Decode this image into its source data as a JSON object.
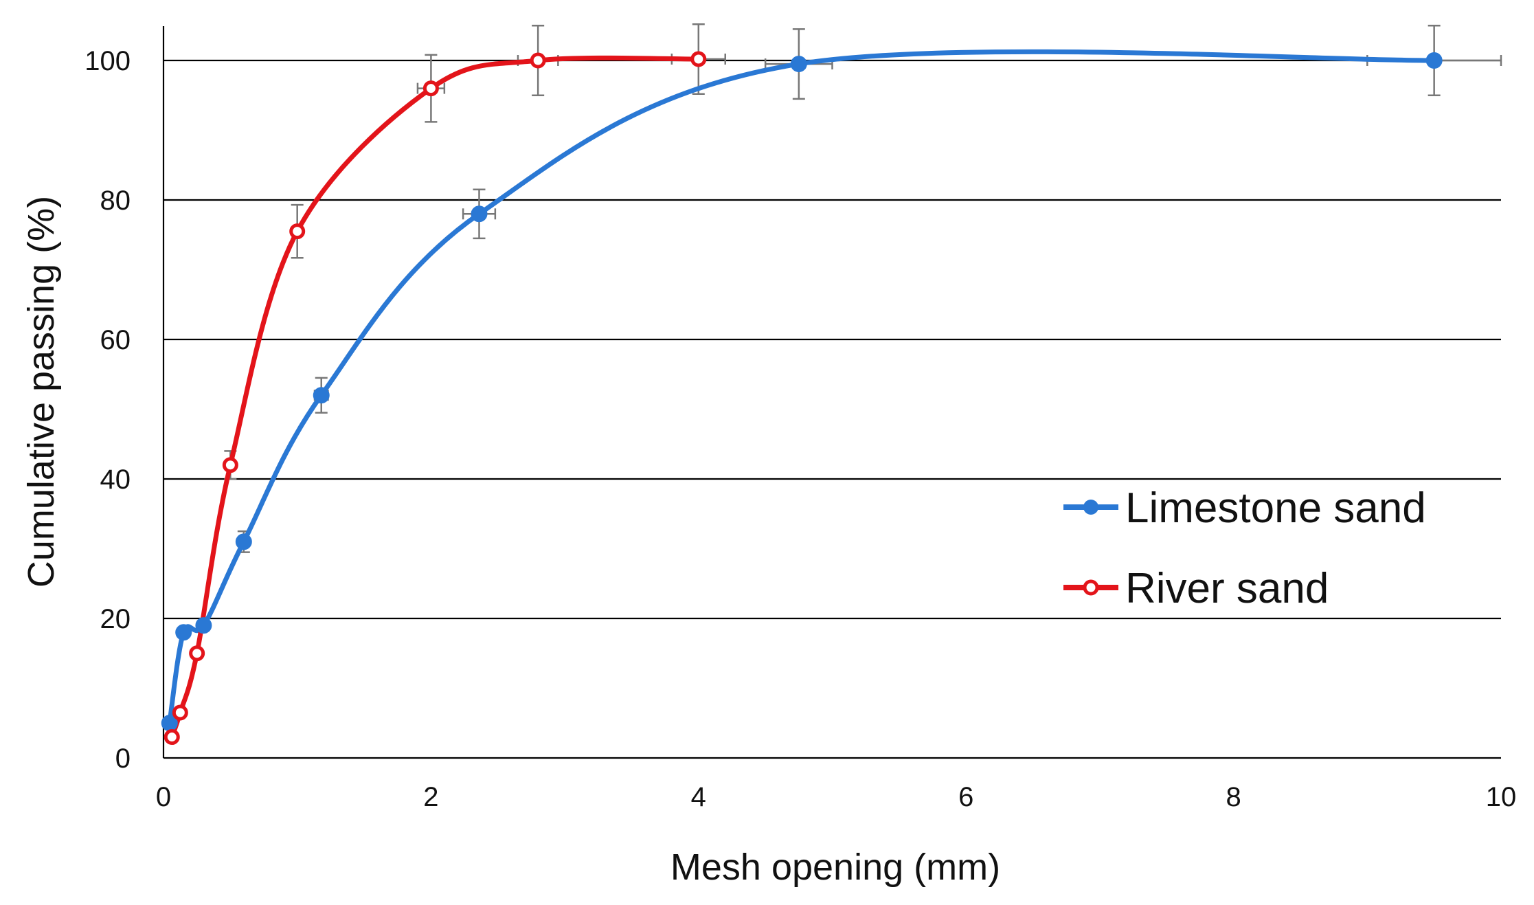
{
  "chart_data": {
    "type": "scatter",
    "title": "",
    "xlabel": "Mesh opening (mm)",
    "ylabel": "Cumulative passing (%)",
    "xlim": [
      0,
      10
    ],
    "ylim": [
      0,
      100
    ],
    "x_ticks": [
      0,
      2,
      4,
      6,
      8,
      10
    ],
    "y_ticks": [
      0,
      20,
      40,
      60,
      80,
      100
    ],
    "x_tick_labels": [
      "0",
      "2",
      "4",
      "6",
      "8",
      "10"
    ],
    "y_tick_labels": [
      "0",
      "20",
      "40",
      "60",
      "80",
      "100"
    ],
    "grid": "horizontal",
    "legend_position": "right",
    "series": [
      {
        "name": "Limestone sand",
        "color": "#2a78d4",
        "marker": "filled-circle",
        "points": [
          {
            "x": 0.045,
            "y": 5
          },
          {
            "x": 0.15,
            "y": 18
          },
          {
            "x": 0.3,
            "y": 19
          },
          {
            "x": 0.6,
            "y": 31
          },
          {
            "x": 1.18,
            "y": 52
          },
          {
            "x": 2.36,
            "y": 78
          },
          {
            "x": 4.75,
            "y": 99.5
          },
          {
            "x": 9.5,
            "y": 100
          }
        ],
        "y_error": [
          0,
          0,
          0,
          1.5,
          2.5,
          3.5,
          5,
          5
        ],
        "x_error": [
          0,
          0,
          0,
          0,
          0.05,
          0.12,
          0.25,
          0.5
        ]
      },
      {
        "name": "River sand",
        "color": "#e3141a",
        "marker": "open-circle",
        "points": [
          {
            "x": 0.063,
            "y": 3
          },
          {
            "x": 0.125,
            "y": 6.5
          },
          {
            "x": 0.25,
            "y": 15
          },
          {
            "x": 0.5,
            "y": 42
          },
          {
            "x": 1.0,
            "y": 75.5
          },
          {
            "x": 2.0,
            "y": 96
          },
          {
            "x": 2.8,
            "y": 100
          },
          {
            "x": 4.0,
            "y": 100.2
          }
        ],
        "y_error": [
          0,
          0,
          0,
          2,
          3.8,
          4.8,
          5,
          5
        ],
        "x_error": [
          0,
          0,
          0,
          0,
          0,
          0.1,
          0.15,
          0.2
        ]
      }
    ]
  },
  "colors": {
    "axis": "#000000",
    "gridline": "#000000",
    "errorbar": "#777777"
  }
}
